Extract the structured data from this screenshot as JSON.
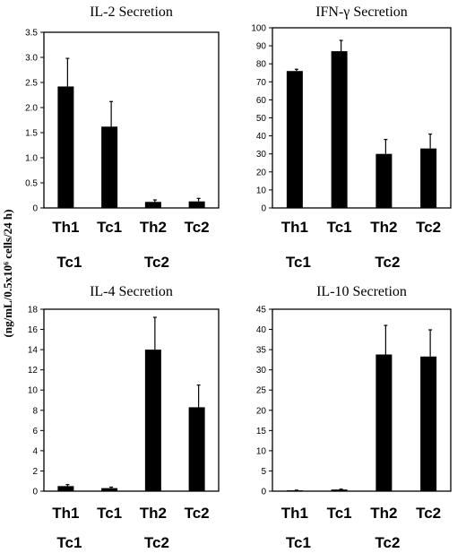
{
  "figure": {
    "ylabel": "(ng/mL/0.5x10⁶ cells/24 h)"
  },
  "colors": {
    "bar": "#000000",
    "axis": "#000000"
  },
  "chart_data": [
    {
      "type": "bar",
      "title": "IL-2 Secretion",
      "categories": [
        "Th1",
        "Tc1",
        "Th2",
        "Tc2"
      ],
      "values": [
        2.42,
        1.62,
        0.12,
        0.13
      ],
      "errors": [
        0.56,
        0.5,
        0.04,
        0.06
      ],
      "ylim": [
        0,
        3.5
      ],
      "yticks": [
        0,
        0.5,
        1.0,
        1.5,
        2.0,
        2.5,
        3.0,
        3.5
      ],
      "ytick_labels": [
        "0",
        "0.5",
        "1.0",
        "1.5",
        "2.0",
        "2.5",
        "3.0",
        "3.5"
      ],
      "group_labels": [
        "Tc1",
        "Tc2"
      ]
    },
    {
      "type": "bar",
      "title": "IFN-γ Secretion",
      "categories": [
        "Th1",
        "Tc1",
        "Th2",
        "Tc2"
      ],
      "values": [
        76,
        87,
        30,
        33
      ],
      "errors": [
        1,
        6,
        8,
        8
      ],
      "ylim": [
        0,
        100
      ],
      "yticks": [
        0,
        10,
        20,
        30,
        40,
        50,
        60,
        70,
        80,
        90,
        100
      ],
      "ytick_labels": [
        "0",
        "10",
        "20",
        "30",
        "40",
        "50",
        "60",
        "70",
        "80",
        "90",
        "100"
      ],
      "group_labels": [
        "Tc1",
        "Tc2"
      ]
    },
    {
      "type": "bar",
      "title": "IL-4 Secretion",
      "categories": [
        "Th1",
        "Tc1",
        "Th2",
        "Tc2"
      ],
      "values": [
        0.5,
        0.3,
        14.0,
        8.3
      ],
      "errors": [
        0.15,
        0.1,
        3.2,
        2.2
      ],
      "ylim": [
        0,
        18
      ],
      "yticks": [
        0,
        2,
        4,
        6,
        8,
        10,
        12,
        14,
        16,
        18
      ],
      "ytick_labels": [
        "0",
        "2",
        "4",
        "6",
        "8",
        "10",
        "12",
        "14",
        "16",
        "18"
      ],
      "group_labels": [
        "Tc1",
        "Tc2"
      ]
    },
    {
      "type": "bar",
      "title": "IL-10 Secretion",
      "categories": [
        "Th1",
        "Tc1",
        "Th2",
        "Tc2"
      ],
      "values": [
        0.2,
        0.4,
        33.8,
        33.3
      ],
      "errors": [
        0.05,
        0.1,
        7.2,
        6.6
      ],
      "ylim": [
        0,
        45
      ],
      "yticks": [
        0,
        5,
        10,
        15,
        20,
        25,
        30,
        35,
        40,
        45
      ],
      "ytick_labels": [
        "0",
        "5",
        "10",
        "15",
        "20",
        "25",
        "30",
        "35",
        "40",
        "45"
      ],
      "group_labels": [
        "Tc1",
        "Tc2"
      ]
    }
  ]
}
